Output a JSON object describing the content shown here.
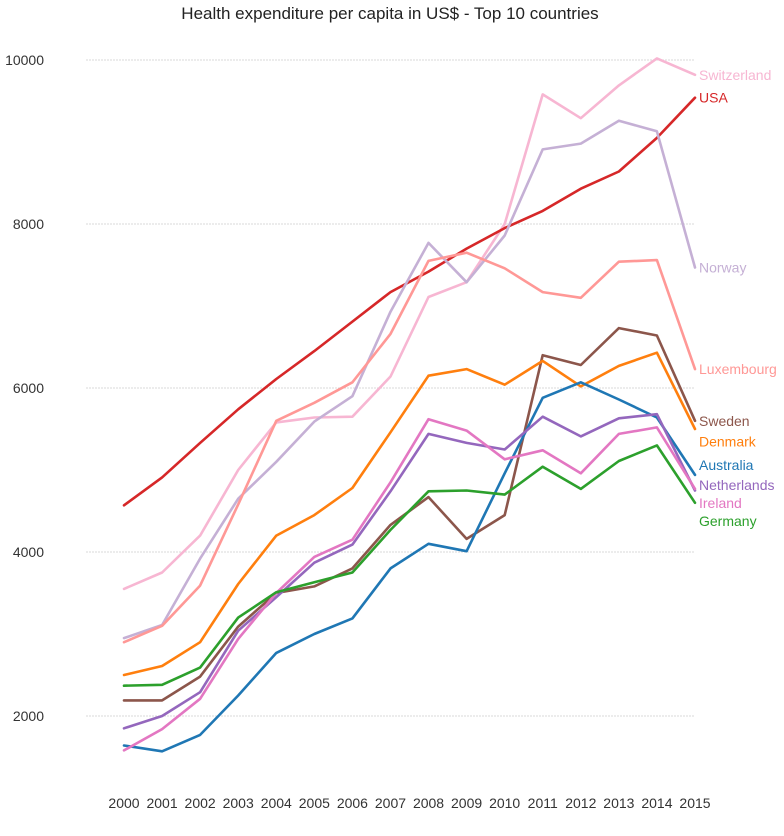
{
  "chart_data": {
    "type": "line",
    "title": "Health expenditure per capita in US$ - Top 10 countries",
    "xlabel": "",
    "ylabel": "",
    "x": [
      2000,
      2001,
      2002,
      2003,
      2004,
      2005,
      2006,
      2007,
      2008,
      2009,
      2010,
      2011,
      2012,
      2013,
      2014,
      2015
    ],
    "ylim": [
      800,
      10200
    ],
    "yticks": [
      2000,
      4000,
      6000,
      8000,
      10000
    ],
    "grid": "horizontal",
    "legend": "direct labels at line ends",
    "series": [
      {
        "name": "Switzerland",
        "color": "#f7b6d2",
        "values": [
          3550,
          3750,
          4200,
          5000,
          5580,
          5640,
          5650,
          6140,
          7110,
          7290,
          8000,
          9580,
          9290,
          9690,
          10020,
          9820
        ]
      },
      {
        "name": "USA",
        "color": "#d62728",
        "values": [
          4570,
          4910,
          5330,
          5740,
          6110,
          6450,
          6810,
          7170,
          7420,
          7700,
          7950,
          8160,
          8430,
          8640,
          9050,
          9540
        ]
      },
      {
        "name": "Norway",
        "color": "#c5b0d5",
        "values": [
          2950,
          3110,
          3920,
          4650,
          5100,
          5590,
          5900,
          6930,
          7770,
          7290,
          7860,
          8910,
          8980,
          9260,
          9130,
          7470
        ]
      },
      {
        "name": "Luxembourg",
        "color": "#ff9896",
        "values": [
          2900,
          3100,
          3590,
          4580,
          5600,
          5820,
          6070,
          6660,
          7550,
          7650,
          7460,
          7170,
          7100,
          7540,
          7560,
          6230
        ]
      },
      {
        "name": "Sweden",
        "color": "#8c564b",
        "values": [
          2190,
          2190,
          2480,
          3090,
          3500,
          3580,
          3800,
          4330,
          4670,
          4160,
          4450,
          6400,
          6280,
          6730,
          6640,
          5600
        ]
      },
      {
        "name": "Denmark",
        "color": "#ff7f0e",
        "values": [
          2500,
          2610,
          2900,
          3610,
          4200,
          4450,
          4780,
          5460,
          6150,
          6230,
          6040,
          6330,
          6020,
          6270,
          6430,
          5500
        ]
      },
      {
        "name": "Australia",
        "color": "#1f77b4",
        "values": [
          1640,
          1570,
          1770,
          2250,
          2770,
          3000,
          3190,
          3800,
          4100,
          4010,
          4960,
          5880,
          6070,
          5860,
          5640,
          4940
        ]
      },
      {
        "name": "Netherlands",
        "color": "#9467bd",
        "values": [
          1850,
          2000,
          2290,
          3040,
          3450,
          3870,
          4090,
          4740,
          5440,
          5330,
          5250,
          5650,
          5410,
          5630,
          5680,
          4750
        ]
      },
      {
        "name": "Ireland",
        "color": "#e377c2",
        "values": [
          1580,
          1840,
          2210,
          2940,
          3500,
          3940,
          4150,
          4850,
          5620,
          5480,
          5130,
          5240,
          4960,
          5440,
          5520,
          4770
        ]
      },
      {
        "name": "Germany",
        "color": "#2ca02c",
        "values": [
          2370,
          2380,
          2590,
          3200,
          3510,
          3630,
          3750,
          4270,
          4740,
          4750,
          4700,
          5040,
          4770,
          5110,
          5300,
          4600
        ]
      }
    ],
    "end_labels": [
      {
        "name": "Switzerland",
        "value": 9820
      },
      {
        "name": "USA",
        "value": 9540
      },
      {
        "name": "Norway",
        "value": 7470
      },
      {
        "name": "Luxembourg",
        "value": 6230
      },
      {
        "name": "Sweden",
        "value": 5600
      },
      {
        "name": "Denmark",
        "value": 5350
      },
      {
        "name": "Australia",
        "value": 5060
      },
      {
        "name": "Netherlands",
        "value": 4820
      },
      {
        "name": "Ireland",
        "value": 4600
      },
      {
        "name": "Germany",
        "value": 4380
      }
    ]
  }
}
